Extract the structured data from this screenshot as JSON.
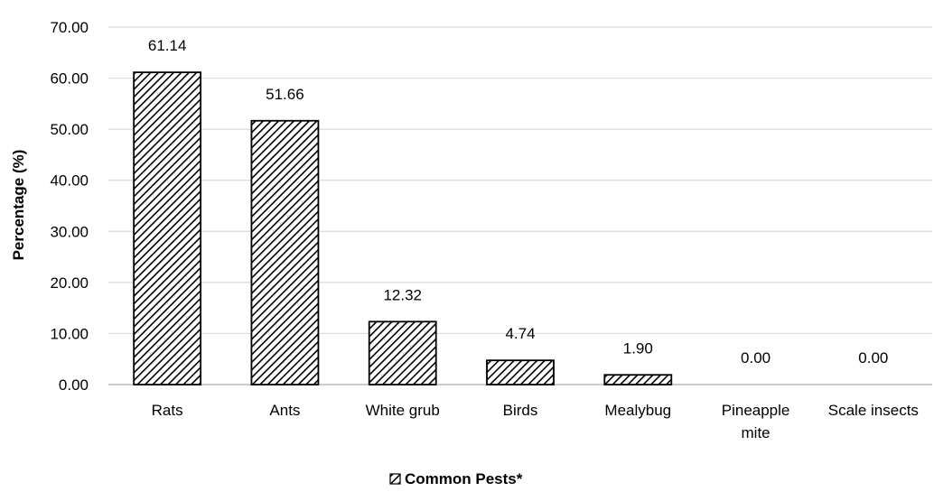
{
  "chart_data": {
    "type": "bar",
    "categories": [
      [
        "Rats"
      ],
      [
        "Ants"
      ],
      [
        "White grub"
      ],
      [
        "Birds"
      ],
      [
        "Mealybug"
      ],
      [
        "Pineapple",
        "mite"
      ],
      [
        "Scale insects"
      ]
    ],
    "series": [
      {
        "name": "Common Pests*",
        "values": [
          61.14,
          51.66,
          12.32,
          4.74,
          1.9,
          0.0,
          0.0
        ],
        "labels": [
          "61.14",
          "51.66",
          "12.32",
          "4.74",
          "1.90",
          "0.00",
          "0.00"
        ]
      }
    ],
    "ylabel": "Percentage (%)",
    "xlabel": "",
    "ylim": [
      0,
      70
    ],
    "yticks": [
      0,
      10,
      20,
      30,
      40,
      50,
      60,
      70
    ],
    "ytick_labels": [
      "0.00",
      "10.00",
      "20.00",
      "30.00",
      "40.00",
      "50.00",
      "60.00",
      "70.00"
    ],
    "grid": true,
    "legend_position": "bottom-center",
    "bar_fill": "diagonal-hatch",
    "colors": {
      "bar_stroke": "#000000",
      "hatch": "#000000",
      "grid": "#d9d9d9",
      "text": "#000000"
    }
  }
}
